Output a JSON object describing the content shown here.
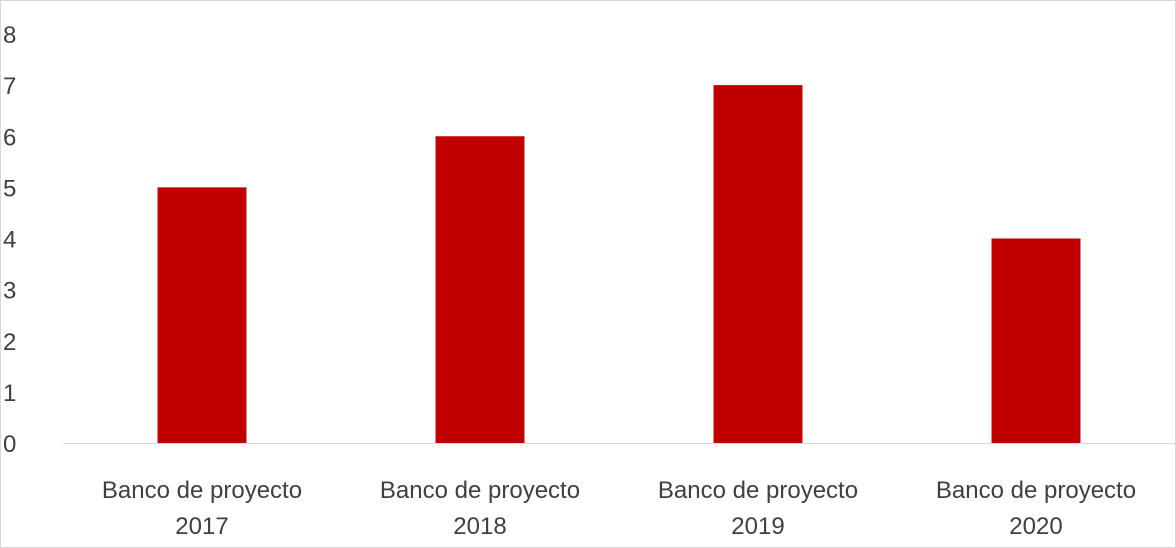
{
  "chart_data": {
    "type": "bar",
    "categories": [
      [
        "Banco de proyecto",
        "2017"
      ],
      [
        "Banco de proyecto",
        "2018"
      ],
      [
        "Banco de proyecto",
        "2019"
      ],
      [
        "Banco de proyecto",
        "2020"
      ]
    ],
    "values": [
      5,
      6,
      7,
      4
    ],
    "title": "",
    "xlabel": "",
    "ylabel": "",
    "ylim": [
      0,
      8
    ],
    "yticks": [
      "0",
      "1",
      "2",
      "3",
      "4",
      "5",
      "6",
      "7",
      "8"
    ],
    "grid": false,
    "legend": "none",
    "bar_color": "#C00000",
    "axis_color": "#d9d9d9",
    "text_color": "#404040"
  }
}
